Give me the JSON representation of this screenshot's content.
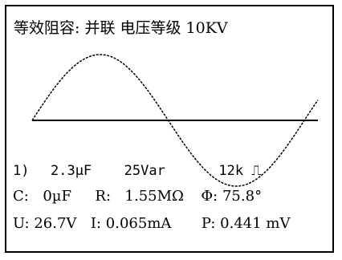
{
  "header": {
    "title": "等效阻容: 并联 电压等级 10KV"
  },
  "readout": {
    "index": "1)",
    "capacitance": "2.3µF",
    "reactive_power": "25Var",
    "frequency": "12k",
    "frequency_icon": "pulse-icon",
    "c_label": "C:",
    "c_value": "0µF",
    "r_label": "R:",
    "r_value": "1.55MΩ",
    "phi_label": "Φ:",
    "phi_value": "75.8°",
    "u_label": "U:",
    "u_value": "26.7V",
    "i_label": "I:",
    "i_value": "0.065mA",
    "p_label": "P:",
    "p_value": "0.441 mV"
  }
}
